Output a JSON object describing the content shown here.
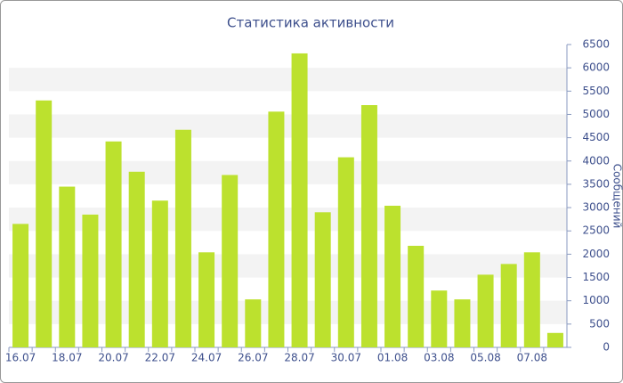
{
  "chart_data": {
    "type": "bar",
    "title": "Статистика активности",
    "y_label": "Сообщений",
    "categories": [
      "16.07",
      null,
      "18.07",
      null,
      "20.07",
      null,
      "22.07",
      null,
      "24.07",
      null,
      "26.07",
      null,
      "28.07",
      null,
      "30.07",
      null,
      "01.08",
      null,
      "03.08",
      null,
      "05.08",
      null,
      "07.08",
      null
    ],
    "values": [
      2650,
      5300,
      3450,
      2850,
      4420,
      3770,
      3150,
      4670,
      2040,
      3700,
      1030,
      5060,
      6310,
      2900,
      4080,
      5200,
      3040,
      2180,
      1220,
      1030,
      1560,
      1790,
      2040,
      310
    ],
    "color": "#bce12e",
    "ylim": [
      0,
      6500
    ],
    "yticks": [
      0,
      500,
      1000,
      1500,
      2000,
      2500,
      3000,
      3500,
      4000,
      4500,
      5000,
      5500,
      6000,
      6500
    ],
    "y_axis_side": "right",
    "grid": true
  }
}
